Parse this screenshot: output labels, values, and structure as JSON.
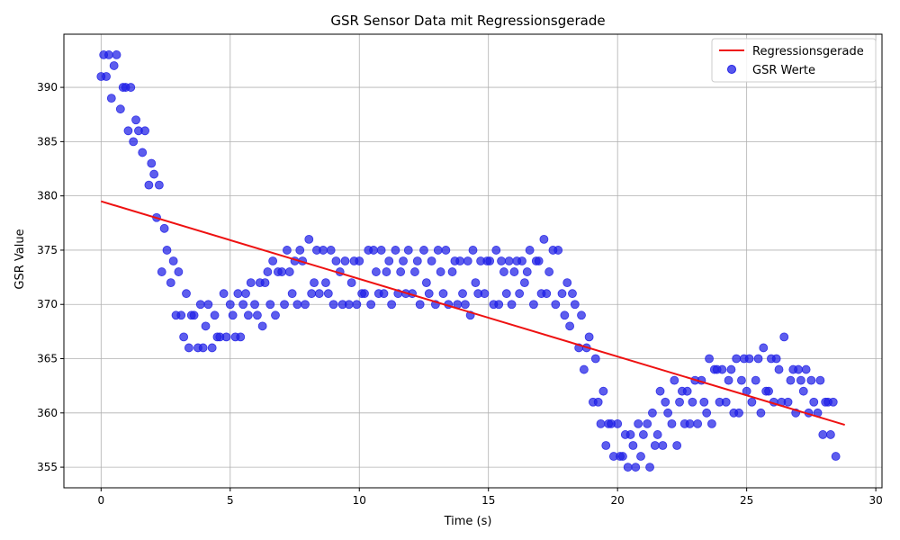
{
  "chart_data": {
    "type": "scatter",
    "title": "GSR Sensor Data mit Regressionsgerade",
    "xlabel": "Time (s)",
    "ylabel": "GSR Value",
    "xlim": [
      -1.44,
      30.24
    ],
    "ylim": [
      353.1,
      394.9
    ],
    "xticks": [
      0,
      5,
      10,
      15,
      20,
      25,
      30
    ],
    "xtick_labels": [
      "0",
      "5",
      "10",
      "15",
      "20",
      "25",
      "30"
    ],
    "yticks": [
      355,
      360,
      365,
      370,
      375,
      380,
      385,
      390
    ],
    "ytick_labels": [
      "355",
      "360",
      "365",
      "370",
      "375",
      "380",
      "385",
      "390"
    ],
    "grid": true,
    "legend_position": "top-right",
    "series": [
      {
        "name": "Regressionsgerade",
        "kind": "line",
        "color": "#ee1111",
        "x": [
          0,
          28.8
        ],
        "y": [
          379.5,
          358.9
        ]
      },
      {
        "name": "GSR Werte",
        "kind": "scatter",
        "color": "#1f1fe6",
        "points": [
          [
            0.0,
            391
          ],
          [
            0.1,
            393
          ],
          [
            0.2,
            391
          ],
          [
            0.3,
            393
          ],
          [
            0.4,
            389
          ],
          [
            0.5,
            392
          ],
          [
            0.6,
            393
          ],
          [
            0.75,
            388
          ],
          [
            0.85,
            390
          ],
          [
            0.95,
            390
          ],
          [
            1.05,
            386
          ],
          [
            1.15,
            390
          ],
          [
            1.25,
            385
          ],
          [
            1.35,
            387
          ],
          [
            1.45,
            386
          ],
          [
            1.6,
            384
          ],
          [
            1.7,
            386
          ],
          [
            1.85,
            381
          ],
          [
            1.95,
            383
          ],
          [
            2.05,
            382
          ],
          [
            2.15,
            378
          ],
          [
            2.25,
            381
          ],
          [
            2.35,
            373
          ],
          [
            2.45,
            377
          ],
          [
            2.55,
            375
          ],
          [
            2.7,
            372
          ],
          [
            2.8,
            374
          ],
          [
            2.9,
            369
          ],
          [
            3.0,
            373
          ],
          [
            3.1,
            369
          ],
          [
            3.2,
            367
          ],
          [
            3.3,
            371
          ],
          [
            3.4,
            366
          ],
          [
            3.5,
            369
          ],
          [
            3.6,
            369
          ],
          [
            3.75,
            366
          ],
          [
            3.85,
            370
          ],
          [
            3.95,
            366
          ],
          [
            4.05,
            368
          ],
          [
            4.15,
            370
          ],
          [
            4.3,
            366
          ],
          [
            4.4,
            369
          ],
          [
            4.5,
            367
          ],
          [
            4.6,
            367
          ],
          [
            4.75,
            371
          ],
          [
            4.85,
            367
          ],
          [
            5.0,
            370
          ],
          [
            5.1,
            369
          ],
          [
            5.2,
            367
          ],
          [
            5.3,
            371
          ],
          [
            5.4,
            367
          ],
          [
            5.5,
            370
          ],
          [
            5.6,
            371
          ],
          [
            5.7,
            369
          ],
          [
            5.8,
            372
          ],
          [
            5.95,
            370
          ],
          [
            6.05,
            369
          ],
          [
            6.15,
            372
          ],
          [
            6.25,
            368
          ],
          [
            6.35,
            372
          ],
          [
            6.45,
            373
          ],
          [
            6.55,
            370
          ],
          [
            6.65,
            374
          ],
          [
            6.75,
            369
          ],
          [
            6.85,
            373
          ],
          [
            7.0,
            373
          ],
          [
            7.1,
            370
          ],
          [
            7.2,
            375
          ],
          [
            7.3,
            373
          ],
          [
            7.4,
            371
          ],
          [
            7.5,
            374
          ],
          [
            7.6,
            370
          ],
          [
            7.7,
            375
          ],
          [
            7.8,
            374
          ],
          [
            7.9,
            370
          ],
          [
            8.05,
            376
          ],
          [
            8.15,
            371
          ],
          [
            8.25,
            372
          ],
          [
            8.35,
            375
          ],
          [
            8.45,
            371
          ],
          [
            8.6,
            375
          ],
          [
            8.7,
            372
          ],
          [
            8.8,
            371
          ],
          [
            8.9,
            375
          ],
          [
            9.0,
            370
          ],
          [
            9.1,
            374
          ],
          [
            9.25,
            373
          ],
          [
            9.35,
            370
          ],
          [
            9.45,
            374
          ],
          [
            9.6,
            370
          ],
          [
            9.7,
            372
          ],
          [
            9.8,
            374
          ],
          [
            9.9,
            370
          ],
          [
            10.0,
            374
          ],
          [
            10.1,
            371
          ],
          [
            10.2,
            371
          ],
          [
            10.35,
            375
          ],
          [
            10.45,
            370
          ],
          [
            10.55,
            375
          ],
          [
            10.65,
            373
          ],
          [
            10.75,
            371
          ],
          [
            10.85,
            375
          ],
          [
            10.95,
            371
          ],
          [
            11.05,
            373
          ],
          [
            11.15,
            374
          ],
          [
            11.25,
            370
          ],
          [
            11.4,
            375
          ],
          [
            11.5,
            371
          ],
          [
            11.6,
            373
          ],
          [
            11.7,
            374
          ],
          [
            11.8,
            371
          ],
          [
            11.9,
            375
          ],
          [
            12.05,
            371
          ],
          [
            12.15,
            373
          ],
          [
            12.25,
            374
          ],
          [
            12.35,
            370
          ],
          [
            12.5,
            375
          ],
          [
            12.6,
            372
          ],
          [
            12.7,
            371
          ],
          [
            12.8,
            374
          ],
          [
            12.95,
            370
          ],
          [
            13.05,
            375
          ],
          [
            13.15,
            373
          ],
          [
            13.25,
            371
          ],
          [
            13.35,
            375
          ],
          [
            13.45,
            370
          ],
          [
            13.6,
            373
          ],
          [
            13.7,
            374
          ],
          [
            13.8,
            370
          ],
          [
            13.9,
            374
          ],
          [
            14.0,
            371
          ],
          [
            14.1,
            370
          ],
          [
            14.2,
            374
          ],
          [
            14.3,
            369
          ],
          [
            14.4,
            375
          ],
          [
            14.5,
            372
          ],
          [
            14.6,
            371
          ],
          [
            14.7,
            374
          ],
          [
            14.85,
            371
          ],
          [
            14.95,
            374
          ],
          [
            15.05,
            374
          ],
          [
            15.2,
            370
          ],
          [
            15.3,
            375
          ],
          [
            15.4,
            370
          ],
          [
            15.5,
            374
          ],
          [
            15.6,
            373
          ],
          [
            15.7,
            371
          ],
          [
            15.8,
            374
          ],
          [
            15.9,
            370
          ],
          [
            16.0,
            373
          ],
          [
            16.1,
            374
          ],
          [
            16.2,
            371
          ],
          [
            16.3,
            374
          ],
          [
            16.4,
            372
          ],
          [
            16.5,
            373
          ],
          [
            16.6,
            375
          ],
          [
            16.75,
            370
          ],
          [
            16.85,
            374
          ],
          [
            16.95,
            374
          ],
          [
            17.05,
            371
          ],
          [
            17.15,
            376
          ],
          [
            17.25,
            371
          ],
          [
            17.35,
            373
          ],
          [
            17.5,
            375
          ],
          [
            17.6,
            370
          ],
          [
            17.7,
            375
          ],
          [
            17.85,
            371
          ],
          [
            17.95,
            369
          ],
          [
            18.05,
            372
          ],
          [
            18.15,
            368
          ],
          [
            18.25,
            371
          ],
          [
            18.35,
            370
          ],
          [
            18.5,
            366
          ],
          [
            18.6,
            369
          ],
          [
            18.7,
            364
          ],
          [
            18.8,
            366
          ],
          [
            18.9,
            367
          ],
          [
            19.05,
            361
          ],
          [
            19.15,
            365
          ],
          [
            19.25,
            361
          ],
          [
            19.35,
            359
          ],
          [
            19.45,
            362
          ],
          [
            19.55,
            357
          ],
          [
            19.65,
            359
          ],
          [
            19.75,
            359
          ],
          [
            19.85,
            356
          ],
          [
            20.0,
            359
          ],
          [
            20.1,
            356
          ],
          [
            20.2,
            356
          ],
          [
            20.3,
            358
          ],
          [
            20.4,
            355
          ],
          [
            20.5,
            358
          ],
          [
            20.6,
            357
          ],
          [
            20.7,
            355
          ],
          [
            20.8,
            359
          ],
          [
            20.9,
            356
          ],
          [
            21.0,
            358
          ],
          [
            21.15,
            359
          ],
          [
            21.25,
            355
          ],
          [
            21.35,
            360
          ],
          [
            21.45,
            357
          ],
          [
            21.55,
            358
          ],
          [
            21.65,
            362
          ],
          [
            21.75,
            357
          ],
          [
            21.85,
            361
          ],
          [
            21.95,
            360
          ],
          [
            22.1,
            359
          ],
          [
            22.2,
            363
          ],
          [
            22.3,
            357
          ],
          [
            22.4,
            361
          ],
          [
            22.5,
            362
          ],
          [
            22.6,
            359
          ],
          [
            22.7,
            362
          ],
          [
            22.8,
            359
          ],
          [
            22.9,
            361
          ],
          [
            23.0,
            363
          ],
          [
            23.1,
            359
          ],
          [
            23.25,
            363
          ],
          [
            23.35,
            361
          ],
          [
            23.45,
            360
          ],
          [
            23.55,
            365
          ],
          [
            23.65,
            359
          ],
          [
            23.75,
            364
          ],
          [
            23.85,
            364
          ],
          [
            23.95,
            361
          ],
          [
            24.05,
            364
          ],
          [
            24.2,
            361
          ],
          [
            24.3,
            363
          ],
          [
            24.4,
            364
          ],
          [
            24.5,
            360
          ],
          [
            24.6,
            365
          ],
          [
            24.7,
            360
          ],
          [
            24.8,
            363
          ],
          [
            24.9,
            365
          ],
          [
            25.0,
            362
          ],
          [
            25.1,
            365
          ],
          [
            25.2,
            361
          ],
          [
            25.35,
            363
          ],
          [
            25.45,
            365
          ],
          [
            25.55,
            360
          ],
          [
            25.65,
            366
          ],
          [
            25.75,
            362
          ],
          [
            25.85,
            362
          ],
          [
            25.95,
            365
          ],
          [
            26.05,
            361
          ],
          [
            26.15,
            365
          ],
          [
            26.25,
            364
          ],
          [
            26.35,
            361
          ],
          [
            26.45,
            367
          ],
          [
            26.6,
            361
          ],
          [
            26.7,
            363
          ],
          [
            26.8,
            364
          ],
          [
            26.9,
            360
          ],
          [
            27.0,
            364
          ],
          [
            27.1,
            363
          ],
          [
            27.2,
            362
          ],
          [
            27.3,
            364
          ],
          [
            27.4,
            360
          ],
          [
            27.5,
            363
          ],
          [
            27.6,
            361
          ],
          [
            27.75,
            360
          ],
          [
            27.85,
            363
          ],
          [
            27.95,
            358
          ],
          [
            28.05,
            361
          ],
          [
            28.15,
            361
          ],
          [
            28.25,
            358
          ],
          [
            28.35,
            361
          ],
          [
            28.45,
            356
          ]
        ]
      }
    ]
  }
}
